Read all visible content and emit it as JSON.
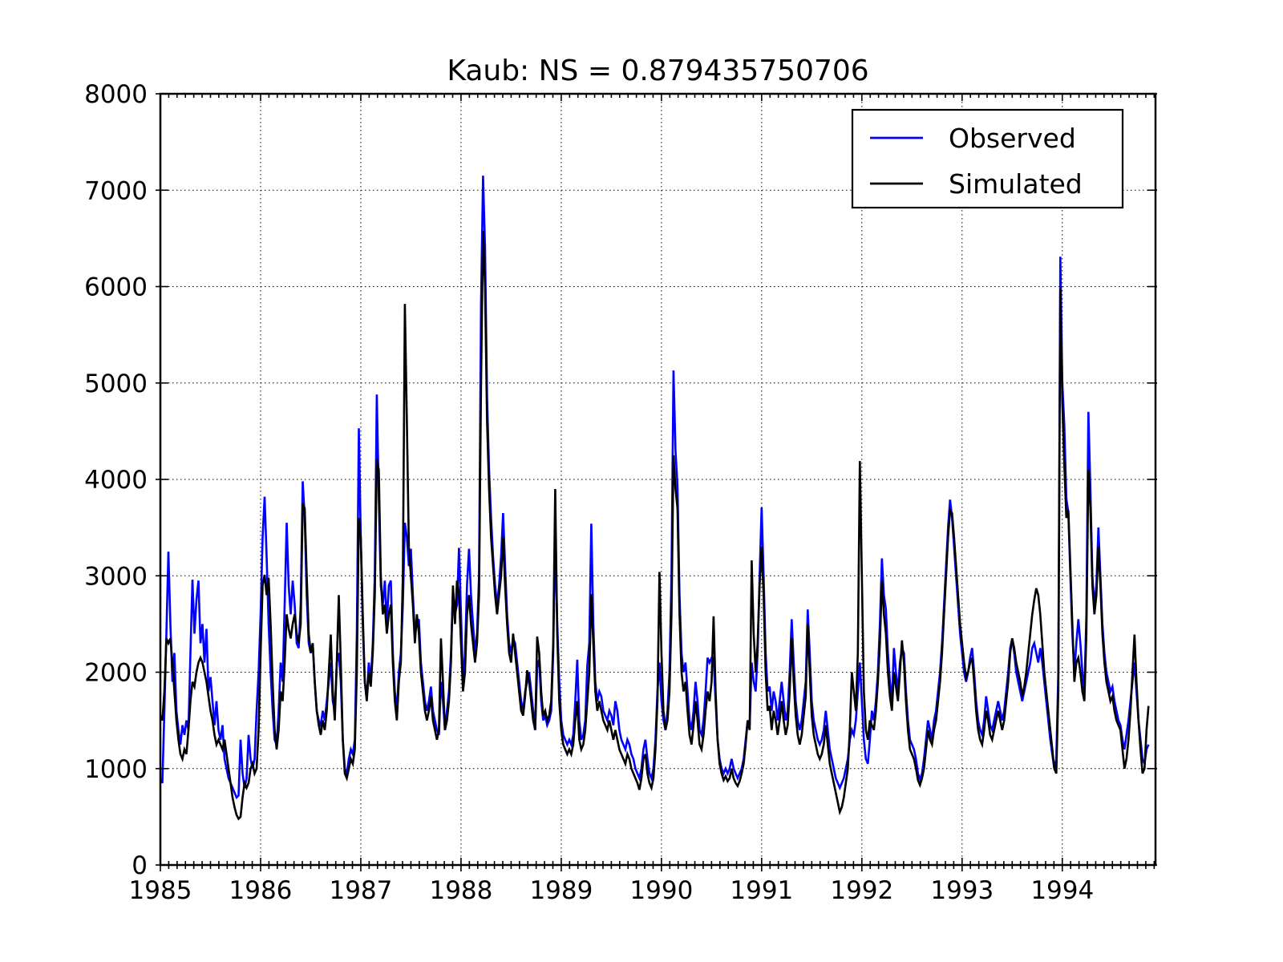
{
  "chart_data": {
    "type": "line",
    "title": "Kaub: NS = 0.879435750706",
    "xlabel": "",
    "ylabel": "",
    "xlim": [
      1985.0,
      1994.93
    ],
    "ylim": [
      0,
      8000
    ],
    "x_ticks": [
      1985,
      1986,
      1987,
      1988,
      1989,
      1990,
      1991,
      1992,
      1993,
      1994
    ],
    "y_ticks": [
      0,
      1000,
      2000,
      3000,
      4000,
      5000,
      6000,
      7000,
      8000
    ],
    "grid": "dotted",
    "minor_ticks_x": "monthly",
    "legend_position": "upper right",
    "x_start": 1985.0,
    "x_step": 0.02,
    "series": [
      {
        "name": "Observed",
        "color": "#0000ff",
        "values": [
          900,
          850,
          1600,
          2400,
          3250,
          2500,
          1900,
          2200,
          1600,
          1400,
          1250,
          1450,
          1350,
          1500,
          1400,
          2200,
          2960,
          2400,
          2750,
          2950,
          2300,
          2500,
          2100,
          2450,
          1800,
          1950,
          1700,
          1450,
          1700,
          1400,
          1300,
          1450,
          1100,
          1000,
          900,
          850,
          800,
          750,
          700,
          720,
          1300,
          950,
          800,
          900,
          1350,
          1100,
          1000,
          1100,
          1600,
          2000,
          2600,
          3400,
          3820,
          3200,
          2500,
          2000,
          1600,
          1300,
          1250,
          1600,
          2100,
          1900,
          2700,
          3550,
          2900,
          2600,
          2950,
          2700,
          2300,
          2250,
          2700,
          3980,
          3600,
          2800,
          2300,
          2200,
          2300,
          1900,
          1600,
          1500,
          1450,
          1600,
          1500,
          1700,
          1900,
          2100,
          1700,
          1600,
          2100,
          2200,
          1900,
          1300,
          1000,
          950,
          1100,
          1200,
          1150,
          1300,
          2400,
          4530,
          3400,
          2500,
          1900,
          1750,
          2100,
          1900,
          2300,
          3000,
          4880,
          3800,
          2900,
          2700,
          2950,
          2500,
          2900,
          2950,
          2200,
          1800,
          1600,
          2000,
          2200,
          2700,
          3550,
          3400,
          3100,
          3280,
          2800,
          2400,
          2500,
          2550,
          2100,
          1900,
          1700,
          1600,
          1700,
          1850,
          1600,
          1500,
          1400,
          1350,
          1900,
          1700,
          1400,
          1600,
          1800,
          2200,
          2850,
          2600,
          2700,
          3290,
          2600,
          1900,
          2200,
          2900,
          3280,
          2800,
          2500,
          2200,
          2400,
          3000,
          5830,
          7150,
          6400,
          4850,
          4100,
          3600,
          3200,
          2900,
          2700,
          2900,
          3200,
          3650,
          3100,
          2600,
          2300,
          2200,
          2350,
          2300,
          2100,
          1900,
          1700,
          1600,
          1800,
          1900,
          2000,
          1800,
          1600,
          1400,
          2050,
          2130,
          1700,
          1500,
          1550,
          1450,
          1500,
          1600,
          2200,
          3400,
          2520,
          1900,
          1500,
          1350,
          1300,
          1250,
          1300,
          1250,
          1350,
          1700,
          2130,
          1500,
          1300,
          1350,
          1500,
          2070,
          2300,
          3540,
          2500,
          1900,
          1700,
          1800,
          1750,
          1600,
          1550,
          1500,
          1600,
          1550,
          1450,
          1700,
          1600,
          1400,
          1300,
          1250,
          1200,
          1300,
          1250,
          1150,
          1100,
          1000,
          950,
          900,
          1000,
          1200,
          1300,
          1100,
          950,
          900,
          1000,
          1300,
          1800,
          2100,
          1700,
          1500,
          1400,
          1600,
          2000,
          3000,
          5130,
          4300,
          3930,
          2800,
          2200,
          2000,
          2100,
          1800,
          1500,
          1400,
          1600,
          1900,
          1700,
          1400,
          1350,
          1500,
          1800,
          2150,
          2100,
          2150,
          2150,
          1700,
          1300,
          1100,
          1000,
          950,
          1000,
          950,
          1000,
          1100,
          1000,
          950,
          900,
          950,
          1000,
          1100,
          1300,
          1500,
          1450,
          2100,
          1900,
          1800,
          2200,
          3000,
          3710,
          3000,
          2200,
          1800,
          1850,
          1600,
          1800,
          1700,
          1500,
          1700,
          1900,
          1700,
          1500,
          1600,
          2000,
          2550,
          2100,
          1700,
          1500,
          1400,
          1500,
          1700,
          1900,
          2650,
          2200,
          1700,
          1500,
          1400,
          1300,
          1250,
          1300,
          1400,
          1600,
          1400,
          1200,
          1100,
          1000,
          900,
          850,
          800,
          850,
          900,
          1000,
          1100,
          1300,
          1400,
          1350,
          1500,
          1800,
          2100,
          1700,
          1300,
          1100,
          1050,
          1300,
          1600,
          1500,
          1700,
          2000,
          2500,
          3180,
          2800,
          2650,
          2200,
          1900,
          1700,
          2250,
          2000,
          1800,
          2100,
          2250,
          2200,
          1800,
          1500,
          1300,
          1250,
          1200,
          1100,
          950,
          890,
          950,
          1100,
          1300,
          1500,
          1400,
          1300,
          1500,
          1600,
          1800,
          2000,
          2300,
          2700,
          3100,
          3500,
          3790,
          3600,
          3300,
          3000,
          2700,
          2400,
          2200,
          2000,
          1900,
          2000,
          2150,
          2250,
          2000,
          1700,
          1500,
          1400,
          1350,
          1500,
          1750,
          1600,
          1450,
          1400,
          1500,
          1600,
          1700,
          1600,
          1500,
          1600,
          1800,
          2000,
          2250,
          2350,
          2200,
          2000,
          1900,
          1800,
          1700,
          1800,
          1900,
          2000,
          2100,
          2250,
          2300,
          2200,
          2100,
          2250,
          2100,
          1900,
          1700,
          1500,
          1300,
          1150,
          1000,
          1100,
          2000,
          6310,
          5000,
          4560,
          3800,
          3660,
          3000,
          2400,
          2000,
          2300,
          2550,
          2300,
          2000,
          1800,
          2600,
          4700,
          3900,
          3000,
          2700,
          2900,
          3500,
          3000,
          2500,
          2200,
          2000,
          1900,
          1800,
          1850,
          1700,
          1600,
          1500,
          1450,
          1300,
          1200,
          1350,
          1500,
          1700,
          1900,
          2100,
          1800,
          1500,
          1300,
          1100,
          1050,
          1200,
          1250
        ]
      },
      {
        "name": "Simulated",
        "color": "#000000",
        "values": [
          1550,
          1500,
          1800,
          2350,
          2300,
          2350,
          2100,
          1800,
          1500,
          1300,
          1150,
          1100,
          1200,
          1150,
          1400,
          1700,
          1900,
          1850,
          2000,
          2100,
          2150,
          2100,
          2000,
          1900,
          1750,
          1600,
          1500,
          1350,
          1250,
          1300,
          1250,
          1200,
          1300,
          1150,
          1000,
          850,
          700,
          600,
          520,
          480,
          500,
          700,
          850,
          800,
          850,
          1000,
          1050,
          950,
          1000,
          1400,
          2200,
          2900,
          3010,
          2800,
          2980,
          2500,
          1900,
          1400,
          1200,
          1400,
          1800,
          1700,
          2100,
          2600,
          2450,
          2350,
          2500,
          2600,
          2400,
          2300,
          2500,
          3750,
          3700,
          3000,
          2400,
          2200,
          2300,
          1900,
          1600,
          1450,
          1350,
          1500,
          1400,
          1600,
          2000,
          2390,
          1800,
          1500,
          2100,
          2800,
          2100,
          1300,
          950,
          900,
          1000,
          1100,
          1050,
          1200,
          2000,
          3600,
          3400,
          2600,
          1900,
          1700,
          2000,
          1850,
          2200,
          2800,
          4210,
          4100,
          3000,
          2600,
          2700,
          2400,
          2600,
          2700,
          2100,
          1700,
          1500,
          1900,
          2100,
          3000,
          5820,
          4600,
          3300,
          3000,
          2700,
          2300,
          2600,
          2400,
          2000,
          1800,
          1600,
          1500,
          1600,
          1750,
          1500,
          1400,
          1300,
          1400,
          2350,
          1900,
          1400,
          1500,
          1700,
          2100,
          2900,
          2500,
          2950,
          2800,
          2300,
          1800,
          2000,
          2600,
          2800,
          2500,
          2300,
          2100,
          2300,
          2800,
          5000,
          6580,
          6000,
          4600,
          3900,
          3400,
          3100,
          2800,
          2600,
          2800,
          3000,
          3400,
          2900,
          2500,
          2200,
          2100,
          2400,
          2200,
          2000,
          1800,
          1600,
          1550,
          1750,
          2020,
          1900,
          1700,
          1500,
          1400,
          2370,
          2200,
          1800,
          1550,
          1600,
          1500,
          1550,
          1700,
          2300,
          3900,
          2400,
          1700,
          1400,
          1250,
          1200,
          1150,
          1200,
          1150,
          1250,
          1500,
          1700,
          1300,
          1200,
          1250,
          1400,
          1700,
          2000,
          2810,
          2300,
          1800,
          1600,
          1700,
          1600,
          1500,
          1450,
          1400,
          1500,
          1400,
          1300,
          1400,
          1300,
          1200,
          1150,
          1100,
          1050,
          1150,
          1100,
          1000,
          950,
          900,
          850,
          780,
          900,
          1100,
          1150,
          950,
          850,
          800,
          900,
          1200,
          1700,
          3040,
          2200,
          1600,
          1400,
          1500,
          1800,
          2600,
          4250,
          3900,
          3700,
          2600,
          2000,
          1800,
          1900,
          1600,
          1350,
          1250,
          1450,
          1700,
          1500,
          1250,
          1200,
          1350,
          1600,
          1800,
          1700,
          1900,
          2580,
          1800,
          1300,
          1050,
          950,
          880,
          920,
          870,
          900,
          1000,
          900,
          850,
          820,
          870,
          950,
          1050,
          1250,
          1500,
          1400,
          3160,
          2400,
          2000,
          2300,
          2900,
          3300,
          2800,
          2000,
          1600,
          1650,
          1400,
          1600,
          1500,
          1350,
          1500,
          1700,
          1500,
          1350,
          1450,
          1800,
          2350,
          1900,
          1550,
          1350,
          1250,
          1350,
          1550,
          1750,
          2500,
          2000,
          1550,
          1350,
          1250,
          1150,
          1100,
          1150,
          1250,
          1450,
          1250,
          1050,
          950,
          850,
          750,
          650,
          550,
          600,
          700,
          850,
          1000,
          1400,
          2000,
          1800,
          1600,
          2200,
          4190,
          3000,
          1800,
          1400,
          1300,
          1500,
          1450,
          1400,
          1600,
          1900,
          2300,
          2950,
          2600,
          2400,
          2000,
          1750,
          1600,
          2000,
          1850,
          1700,
          2000,
          2330,
          2100,
          1700,
          1400,
          1200,
          1150,
          1100,
          1000,
          880,
          830,
          900,
          1000,
          1200,
          1400,
          1300,
          1250,
          1400,
          1500,
          1700,
          1900,
          2200,
          2600,
          3000,
          3400,
          3680,
          3650,
          3400,
          3100,
          2800,
          2500,
          2300,
          2100,
          1950,
          2000,
          2100,
          2150,
          1900,
          1600,
          1400,
          1300,
          1250,
          1400,
          1600,
          1500,
          1350,
          1300,
          1400,
          1500,
          1600,
          1500,
          1400,
          1500,
          1700,
          1900,
          2200,
          2350,
          2250,
          2100,
          2000,
          1900,
          1750,
          1850,
          2000,
          2200,
          2400,
          2600,
          2750,
          2870,
          2800,
          2600,
          2300,
          2000,
          1800,
          1600,
          1400,
          1200,
          1000,
          950,
          1800,
          5980,
          4800,
          4150,
          3600,
          3680,
          3100,
          2500,
          1900,
          2100,
          2150,
          2000,
          1800,
          1700,
          2400,
          4100,
          3700,
          2900,
          2600,
          2800,
          3300,
          2900,
          2400,
          2100,
          1900,
          1800,
          1700,
          1750,
          1600,
          1500,
          1450,
          1400,
          1200,
          1000,
          1100,
          1300,
          1600,
          2000,
          2390,
          1900,
          1500,
          1200,
          950,
          1000,
          1400,
          1650
        ]
      }
    ]
  },
  "legend": {
    "entries": [
      {
        "label": "Observed",
        "color": "#0000ff"
      },
      {
        "label": "Simulated",
        "color": "#000000"
      }
    ]
  },
  "colors": {
    "axis": "#000000",
    "grid": "#000000",
    "background": "#ffffff"
  }
}
